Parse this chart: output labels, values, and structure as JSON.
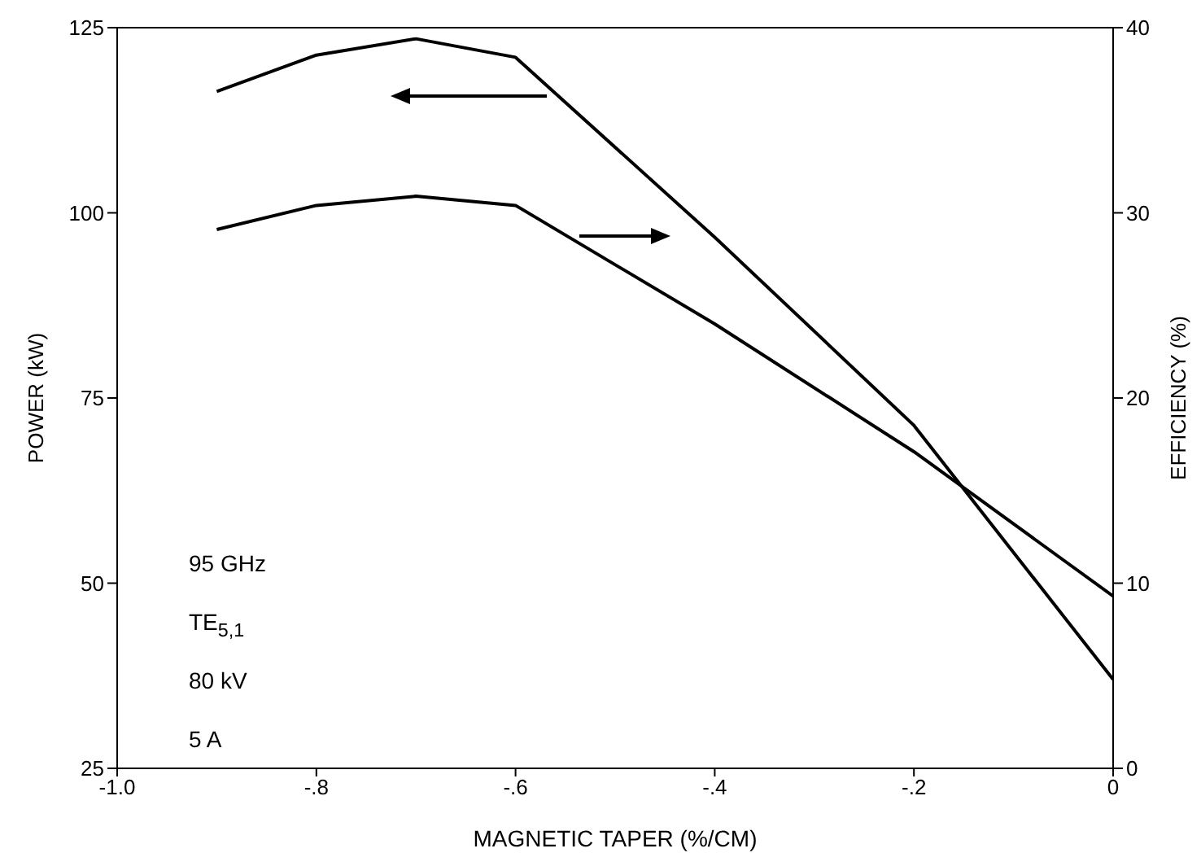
{
  "chart_data": {
    "type": "line",
    "xlabel": "MAGNETIC TAPER (%/CM)",
    "ylabel": "POWER (kW)",
    "y2label": "EFFICIENCY (%)",
    "x": [
      -0.9,
      -0.8,
      -0.7,
      -0.6,
      -0.4,
      -0.2,
      0
    ],
    "series": [
      {
        "color": "#000000",
        "values": [
          116.4,
          121.3,
          123.5,
          121,
          96.7,
          71.3,
          37
        ]
      },
      {
        "color": "#000000",
        "axis": "y2",
        "values": [
          29.1,
          30.4,
          30.9,
          30.4,
          24,
          17.1,
          9.3
        ]
      }
    ],
    "xlim": [
      -1.0,
      0
    ],
    "xticks": [
      {
        "value": -1.0,
        "label": "-1.0"
      },
      {
        "value": -0.8,
        "label": "-.8"
      },
      {
        "value": -0.6,
        "label": "-.6"
      },
      {
        "value": -0.4,
        "label": "-.4"
      },
      {
        "value": -0.2,
        "label": "-.2"
      },
      0
    ],
    "ylim": [
      25,
      125
    ],
    "yticks": [
      25,
      50,
      75,
      100,
      125
    ],
    "y2lim": [
      0,
      40
    ],
    "y2ticks": [
      0,
      10,
      20,
      30,
      40
    ],
    "grid": false,
    "legend": false,
    "marker": "none",
    "line_style": "solid",
    "annotations": [
      "95 GHz",
      "TE$_{5,1}$",
      "80 kV",
      "5 A"
    ]
  }
}
